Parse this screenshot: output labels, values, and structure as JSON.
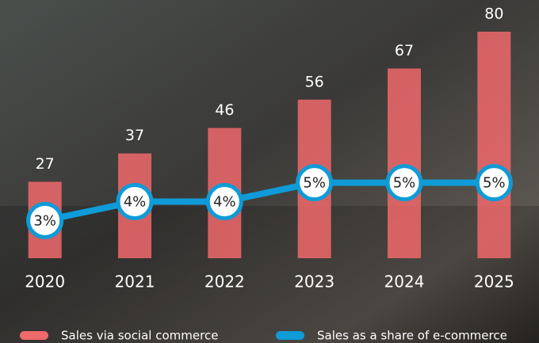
{
  "chart_data": {
    "type": "bar-line",
    "categories": [
      "2020",
      "2021",
      "2022",
      "2023",
      "2024",
      "2025"
    ],
    "series": [
      {
        "name": "Sales via social commerce",
        "type": "bar",
        "color": "#f0696b",
        "values": [
          27,
          37,
          46,
          56,
          67,
          80
        ]
      },
      {
        "name": "Sales as a share of e-commerce",
        "type": "line",
        "axis": "y2",
        "color": "#0f9bd7",
        "values": [
          3,
          4,
          4,
          5,
          5,
          5
        ],
        "value_labels": [
          "3%",
          "4%",
          "4%",
          "5%",
          "5%",
          "5%"
        ]
      }
    ],
    "ylim": [
      0,
      80
    ],
    "y2lim": [
      1,
      13
    ],
    "legend": "bottom"
  }
}
